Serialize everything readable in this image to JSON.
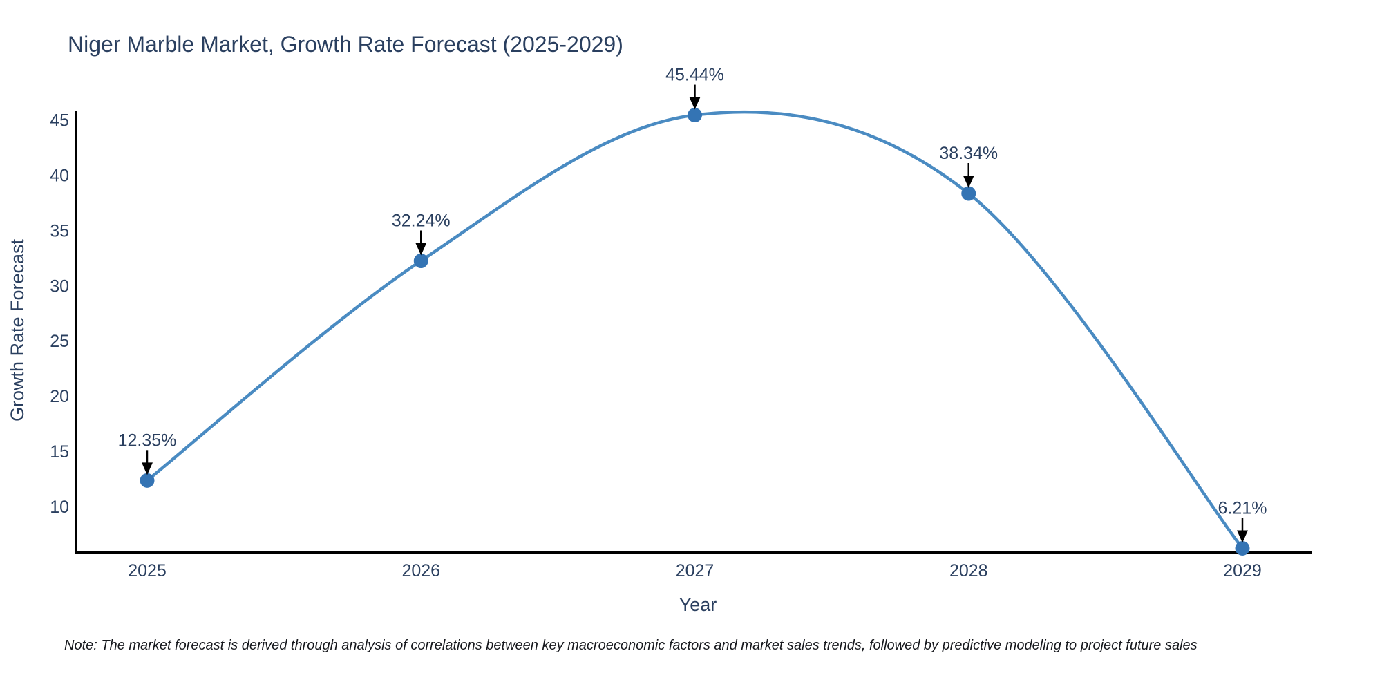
{
  "chart_data": {
    "type": "line",
    "title": "Niger Marble Market, Growth Rate Forecast (2025-2029)",
    "xlabel": "Year",
    "ylabel": "Growth Rate Forecast",
    "categories": [
      "2025",
      "2026",
      "2027",
      "2028",
      "2029"
    ],
    "values": [
      12.35,
      32.24,
      45.44,
      38.34,
      6.21
    ],
    "point_labels": [
      "12.35%",
      "32.24%",
      "45.44%",
      "38.34%",
      "6.21%"
    ],
    "y_ticks": [
      10,
      15,
      20,
      25,
      30,
      35,
      40,
      45
    ],
    "ylim": [
      5.8,
      45.85
    ],
    "line_shape": "spline",
    "grid": false,
    "legend": "none",
    "marker_size": 10.5,
    "colors": {
      "line": "#4a8bc2",
      "marker": "#3474b4",
      "axis": "#000000",
      "text": "#2a3f5f",
      "annotation_arrow": "#000000"
    }
  },
  "note": "Note: The market forecast is derived through analysis of correlations between key macroeconomic factors and market sales trends, followed by predictive modeling to project future sales"
}
